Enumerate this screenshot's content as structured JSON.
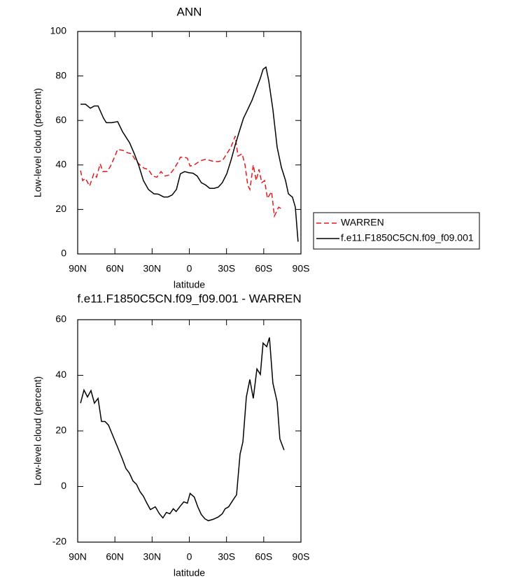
{
  "chart_data": [
    {
      "type": "line",
      "title": "ANN",
      "x_label": "latitude",
      "y_label": "Low-level cloud (percent)",
      "xlim": [
        90,
        -90
      ],
      "ylim": [
        0,
        100
      ],
      "xticks": [
        {
          "value": 90,
          "label": "90N"
        },
        {
          "value": 60,
          "label": "60N"
        },
        {
          "value": 30,
          "label": "30N"
        },
        0,
        {
          "value": -30,
          "label": "30S"
        },
        {
          "value": -60,
          "label": "60S"
        },
        {
          "value": -90,
          "label": "90S"
        }
      ],
      "yticks": [
        0,
        20,
        40,
        60,
        80,
        100
      ],
      "legend": "right",
      "series": [
        {
          "name": "WARREN",
          "color": "#e41a1c",
          "line_style": "dashed",
          "x": [
            87.7,
            86.0,
            83.8,
            80.4,
            77.0,
            74.8,
            71.9,
            69.7,
            66.3,
            63.5,
            60.7,
            57.8,
            53.3,
            49.9,
            46.5,
            43.2,
            39.8,
            36.4,
            33.0,
            29.6,
            26.2,
            22.8,
            19.5,
            16.1,
            12.7,
            9.3,
            7.2,
            3.8,
            1.6,
            -0.6,
            -4.0,
            -6.5,
            -9.7,
            -13.1,
            -16.7,
            -20.0,
            -23.4,
            -26.8,
            -30.2,
            -33.6,
            -37.0,
            -39.2,
            -42.6,
            -44.9,
            -47.1,
            -48.8,
            -51.6,
            -53.9,
            -56.2,
            -58.4,
            -60.7,
            -63.0,
            -66.3,
            -68.6,
            -72.0,
            -75.3
          ],
          "values": [
            37.5,
            33,
            34,
            30.5,
            36,
            34.5,
            40.5,
            37,
            37,
            39.5,
            43,
            47,
            46.5,
            45.5,
            45,
            42,
            40,
            38.5,
            38,
            35,
            34.5,
            37,
            35,
            35.5,
            38,
            41,
            43.5,
            43.5,
            43,
            39.5,
            40,
            41,
            42,
            42.5,
            42,
            41.5,
            41.5,
            42,
            45,
            48,
            53,
            44,
            45,
            40,
            31,
            29,
            40,
            33,
            38,
            32,
            33,
            25,
            28,
            17,
            21,
            20
          ]
        },
        {
          "name": "f.e11.F1850C5CN.f09_f09.001",
          "color": "#000000",
          "line_style": "solid",
          "x": [
            87.7,
            83.7,
            79.8,
            76.5,
            73.6,
            69.1,
            66.9,
            62.4,
            57.8,
            53.9,
            48.2,
            44.3,
            40.9,
            37.0,
            33.0,
            28.5,
            25.1,
            20.6,
            17.2,
            13.8,
            10.4,
            7.2,
            3.8,
            0.4,
            -3.0,
            -6.4,
            -9.7,
            -13.1,
            -16.5,
            -19.9,
            -23.3,
            -26.6,
            -30.2,
            -33.6,
            -37.0,
            -40.3,
            -43.7,
            -47.1,
            -50.5,
            -53.9,
            -57.3,
            -59.5,
            -61.8,
            -64.0,
            -67.4,
            -70.8,
            -74.2,
            -77.6,
            -79.9,
            -83.2,
            -85.5,
            -87.7
          ],
          "values": [
            67.3,
            67.3,
            65.5,
            66.5,
            66.5,
            61,
            59,
            59,
            59.5,
            55,
            50,
            45,
            40,
            33,
            29,
            27,
            26.9,
            25.6,
            25.6,
            26.5,
            29,
            36,
            37,
            36.5,
            36.3,
            35,
            32,
            31,
            29.5,
            29.5,
            30,
            32,
            36,
            42,
            49,
            55,
            61,
            65,
            69,
            74,
            79,
            83,
            84,
            78,
            65,
            48,
            39,
            33,
            27,
            25.5,
            21,
            5.5
          ]
        }
      ]
    },
    {
      "type": "line",
      "title": "f.e11.F1850C5CN.f09_f09.001 - WARREN",
      "x_label": "latitude",
      "y_label": "Low-level cloud (percent)",
      "xlim": [
        90,
        -90
      ],
      "ylim": [
        -20,
        60
      ],
      "xticks": [
        {
          "value": 90,
          "label": "90N"
        },
        {
          "value": 60,
          "label": "60N"
        },
        {
          "value": 30,
          "label": "30N"
        },
        0,
        {
          "value": -30,
          "label": "30S"
        },
        {
          "value": -60,
          "label": "60S"
        },
        {
          "value": -90,
          "label": "90S"
        }
      ],
      "yticks": [
        -20,
        0,
        20,
        40,
        60
      ],
      "series": [
        {
          "color": "#000000",
          "line_style": "solid",
          "x": [
            87.7,
            84.9,
            82.1,
            79.3,
            76.5,
            73.6,
            70.8,
            68.0,
            65.2,
            62.4,
            57.8,
            53.9,
            51.1,
            48.3,
            45.4,
            42.6,
            39.8,
            37.0,
            34.2,
            31.4,
            27.4,
            24.1,
            21.3,
            18.5,
            15.7,
            12.9,
            10.6,
            7.2,
            4.4,
            1.6,
            -0.6,
            -4.0,
            -6.8,
            -9.6,
            -12.5,
            -15.3,
            -19.2,
            -23.2,
            -26.6,
            -28.9,
            -31.7,
            -35.3,
            -38.1,
            -40.9,
            -43.2,
            -46.0,
            -48.8,
            -51.6,
            -54.5,
            -57.3,
            -59.5,
            -62.4,
            -64.6,
            -67.4,
            -70.8,
            -73.0,
            -76.4
          ],
          "values": [
            30,
            34.7,
            32.2,
            34.5,
            30,
            31.7,
            23.4,
            23.4,
            22.1,
            19.1,
            14.1,
            9.8,
            6.5,
            4.8,
            2,
            0.8,
            -1.8,
            -3.5,
            -6,
            -8.3,
            -7.3,
            -9.8,
            -11.3,
            -9.3,
            -9.8,
            -8,
            -9,
            -7,
            -5.5,
            -6,
            -2.5,
            -3.8,
            -7.3,
            -10,
            -11.6,
            -12.3,
            -11.8,
            -11,
            -9.8,
            -8,
            -7.3,
            -4.8,
            -3,
            11.6,
            16.1,
            32.2,
            38.5,
            31.7,
            42.3,
            40.3,
            51.6,
            50.3,
            53.6,
            37.2,
            30.4,
            17.1,
            13.1
          ]
        }
      ]
    }
  ]
}
